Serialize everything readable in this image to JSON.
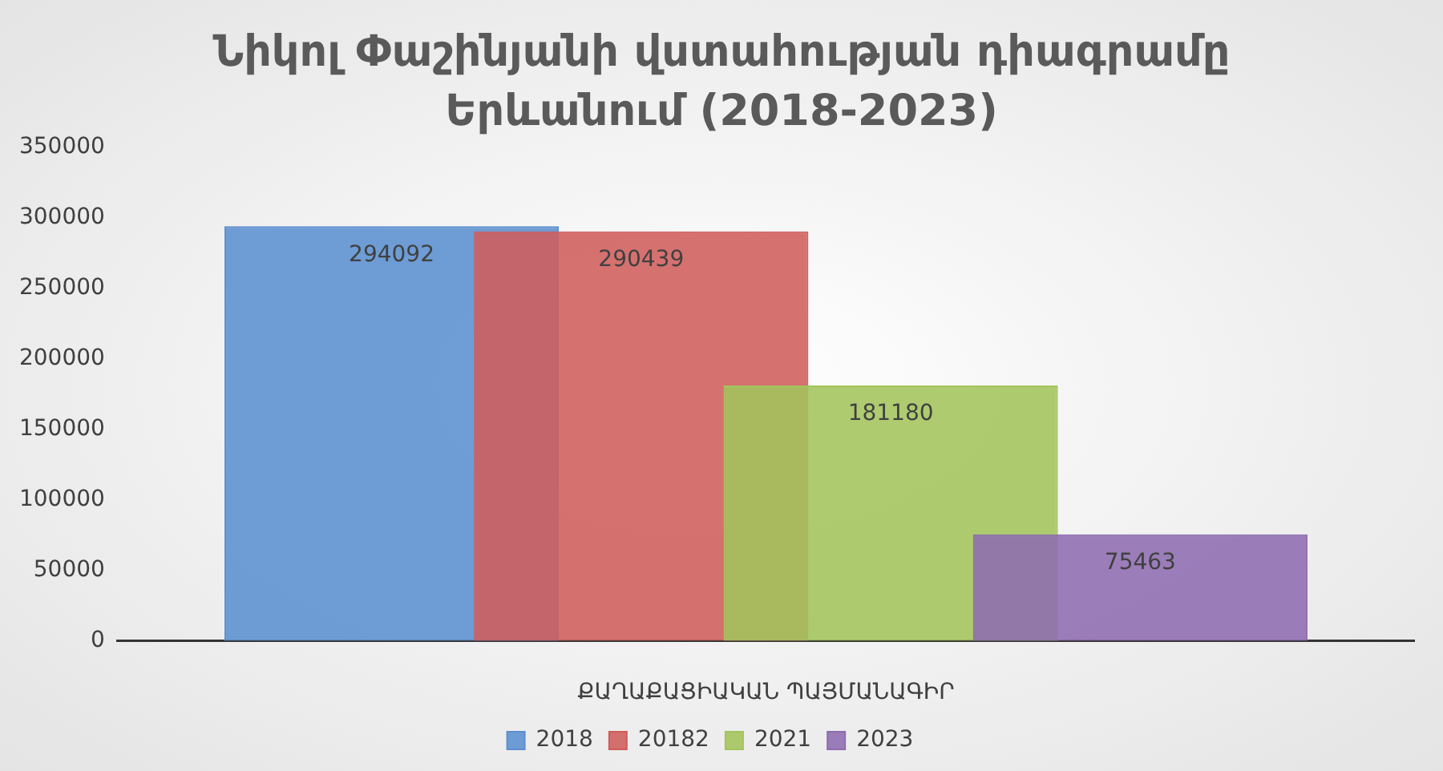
{
  "chart_data": {
    "type": "bar",
    "title": "Նիկոլ Փաշինյանի վստահության դիագրամը Երևանում (2018-2023)",
    "xlabel": "ՔԱՂԱՔԱՑԻԱԿԱՆ ՊԱՅՄԱՆԱԳԻՐ",
    "categories": [
      null
    ],
    "series": [
      {
        "name": "2018",
        "color": "#5b8fd0",
        "values": [
          294092
        ]
      },
      {
        "name": "20182",
        "color": "#cf5d5b",
        "values": [
          290439
        ]
      },
      {
        "name": "2021",
        "color": "#a3c45c",
        "values": [
          181180
        ]
      },
      {
        "name": "2023",
        "color": "#8e6cb0",
        "values": [
          75463
        ]
      }
    ],
    "ylim": [
      0,
      350000
    ],
    "yticks": [
      0,
      50000,
      100000,
      150000,
      200000,
      250000,
      300000,
      350000
    ],
    "grid": false,
    "legend": "bottom",
    "data_labels": true
  }
}
